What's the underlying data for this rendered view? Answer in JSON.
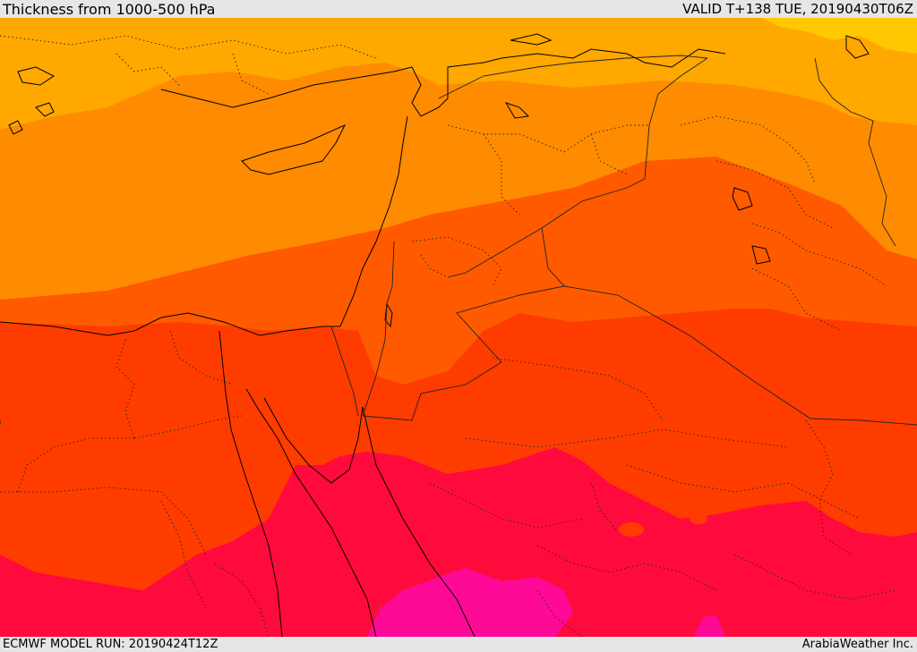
{
  "header": {
    "title": "Thickness from 1000-500 hPa",
    "valid": "VALID T+138 TUE, 20190430T06Z"
  },
  "footer": {
    "model_run": "ECMWF MODEL RUN: 20190424T12Z",
    "credit": "ArabiaWeather Inc."
  },
  "colors": {
    "band_1": "#ffa800",
    "band_2": "#ff8c00",
    "band_3": "#ff5a00",
    "band_4": "#ff3c00",
    "band_5": "#ff0a3c",
    "band_6": "#ff0a96",
    "band_top": "#ffc800",
    "coastline": "#000000",
    "border": "#222222"
  }
}
